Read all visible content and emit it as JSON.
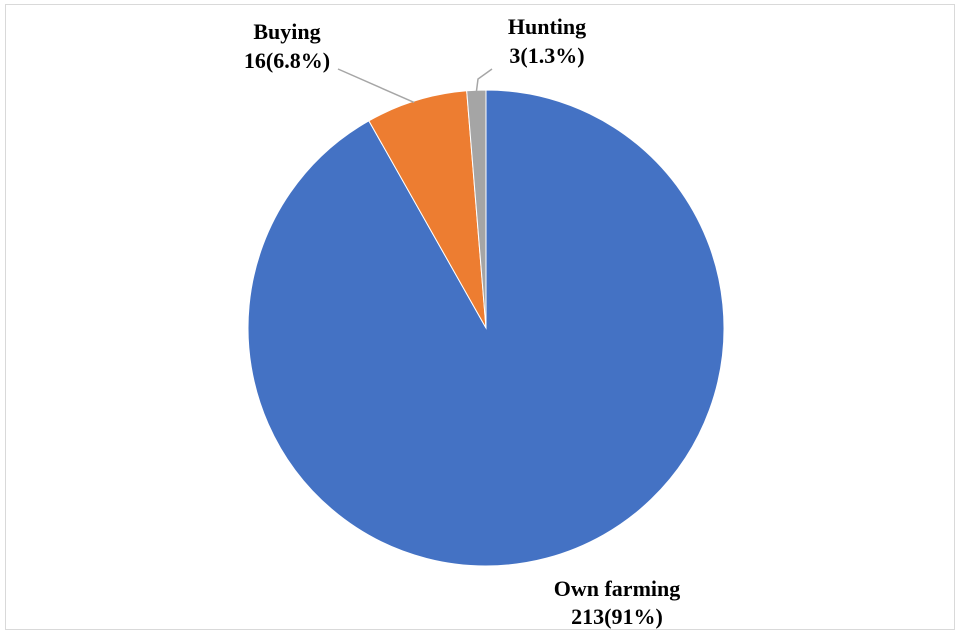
{
  "chart_data": {
    "type": "pie",
    "title": "",
    "start_angle_deg": 0,
    "direction": "clockwise",
    "slices": [
      {
        "name": "Own farming",
        "value": 213,
        "percent_label": "213(91%)",
        "color": "#4472C4"
      },
      {
        "name": "Buying",
        "value": 16,
        "percent_label": "16(6.8%)",
        "color": "#ED7D31"
      },
      {
        "name": "Hunting",
        "value": 3,
        "percent_label": "3(1.3%)",
        "color": "#A5A5A5"
      }
    ],
    "legend": "none"
  }
}
